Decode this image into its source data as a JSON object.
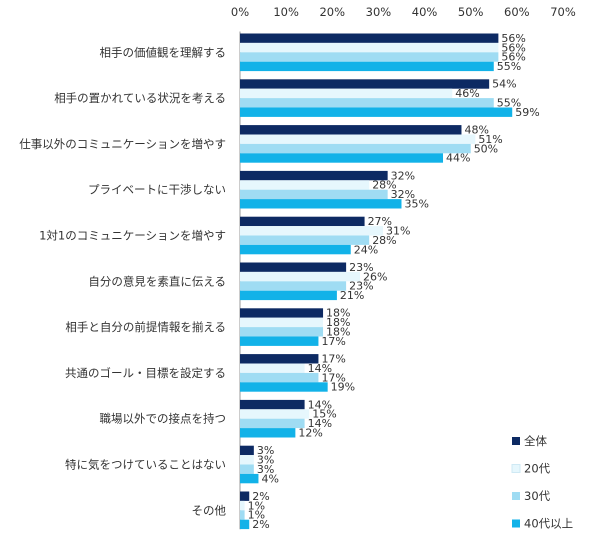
{
  "chart_data": {
    "type": "bar",
    "orientation": "horizontal",
    "xlim": [
      0,
      70
    ],
    "tick_values": [
      0,
      10,
      20,
      30,
      40,
      50,
      60,
      70
    ],
    "tick_labels": [
      "0%",
      "10%",
      "20%",
      "30%",
      "40%",
      "50%",
      "60%",
      "70%"
    ],
    "axis_position": "top",
    "grid": false,
    "legend_position": "bottom-right",
    "categories": [
      "相手の価値観を理解する",
      "相手の置かれている状況を考える",
      "仕事以外のコミュニケーションを増やす",
      "プライベートに干渉しない",
      "1対1のコミュニケーションを増やす",
      "自分の意見を素直に伝える",
      "相手と自分の前提情報を揃える",
      "共通のゴール・目標を設定する",
      "職場以外での接点を持つ",
      "特に気をつけていることはない",
      "その他"
    ],
    "series": [
      {
        "name": "全体",
        "color": "#0d2a63",
        "values": [
          56,
          54,
          48,
          32,
          27,
          23,
          18,
          17,
          14,
          3,
          2
        ],
        "labels": [
          "56%",
          "54%",
          "48%",
          "32%",
          "27%",
          "23%",
          "18%",
          "17%",
          "14%",
          "3%",
          "2%"
        ]
      },
      {
        "name": "20代",
        "color": "#e6f7fd",
        "values": [
          56,
          46,
          51,
          28,
          31,
          26,
          18,
          14,
          15,
          3,
          1
        ],
        "labels": [
          "56%",
          "46%",
          "51%",
          "28%",
          "31%",
          "26%",
          "18%",
          "14%",
          "15%",
          "3%",
          "1%"
        ]
      },
      {
        "name": "30代",
        "color": "#9fdcf3",
        "values": [
          56,
          55,
          50,
          32,
          28,
          23,
          18,
          17,
          14,
          3,
          1
        ],
        "labels": [
          "56%",
          "55%",
          "50%",
          "32%",
          "28%",
          "23%",
          "18%",
          "17%",
          "14%",
          "3%",
          "1%"
        ]
      },
      {
        "name": "40代以上",
        "color": "#12b2e8",
        "values": [
          55,
          59,
          44,
          35,
          24,
          21,
          17,
          19,
          12,
          4,
          2
        ],
        "labels": [
          "55%",
          "59%",
          "44%",
          "35%",
          "24%",
          "21%",
          "17%",
          "19%",
          "12%",
          "4%",
          "2%"
        ]
      }
    ]
  }
}
